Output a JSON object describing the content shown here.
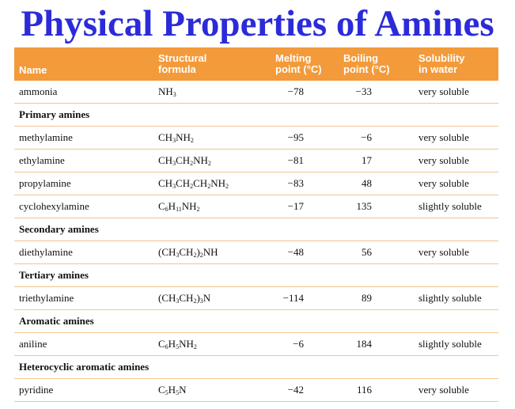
{
  "title": "Physical Properties of Amines",
  "headers": {
    "name": "Name",
    "formula_line1": "Structural",
    "formula_line2": "formula",
    "melting_line1": "Melting",
    "melting_line2": "point (°C)",
    "boiling_line1": "Boiling",
    "boiling_line2": "point (°C)",
    "solubility_line1": "Solubility",
    "solubility_line2": "in water"
  },
  "rows": [
    {
      "type": "data",
      "name": "ammonia",
      "formula_html": "NH<sub>3</sub>",
      "melting": "−78",
      "boiling": "−33",
      "solubility": "very soluble"
    },
    {
      "type": "group",
      "label": "Primary amines"
    },
    {
      "type": "data",
      "name": "methylamine",
      "formula_html": "CH<sub>3</sub>NH<sub>2</sub>",
      "melting": "−95",
      "boiling": "−6",
      "solubility": "very soluble"
    },
    {
      "type": "data",
      "name": "ethylamine",
      "formula_html": "CH<sub>3</sub>CH<sub>2</sub>NH<sub>2</sub>",
      "melting": "−81",
      "boiling": "17",
      "solubility": "very soluble"
    },
    {
      "type": "data",
      "name": "propylamine",
      "formula_html": "CH<sub>3</sub>CH<sub>2</sub>CH<sub>2</sub>NH<sub>2</sub>",
      "melting": "−83",
      "boiling": "48",
      "solubility": "very soluble"
    },
    {
      "type": "data",
      "name": "cyclohexylamine",
      "formula_html": "C<sub>6</sub>H<sub>11</sub>NH<sub>2</sub>",
      "melting": "−17",
      "boiling": "135",
      "solubility": "slightly soluble"
    },
    {
      "type": "group",
      "label": "Secondary amines"
    },
    {
      "type": "data",
      "name": "diethylamine",
      "formula_html": "(CH<sub>3</sub>CH<sub>2</sub>)<sub>2</sub>NH",
      "melting": "−48",
      "boiling": "56",
      "solubility": "very soluble"
    },
    {
      "type": "group",
      "label": "Tertiary amines"
    },
    {
      "type": "data",
      "name": "triethylamine",
      "formula_html": "(CH<sub>3</sub>CH<sub>2</sub>)<sub>3</sub>N",
      "melting": "−114",
      "boiling": "89",
      "solubility": "slightly soluble"
    },
    {
      "type": "group",
      "label": "Aromatic amines"
    },
    {
      "type": "data",
      "name": "aniline",
      "formula_html": "C<sub>6</sub>H<sub>5</sub>NH<sub>2</sub>",
      "melting": "−6",
      "boiling": "184",
      "solubility": "slightly soluble"
    },
    {
      "type": "group",
      "label": "Heterocyclic aromatic amines"
    },
    {
      "type": "data",
      "name": "pyridine",
      "formula_html": "C<sub>5</sub>H<sub>5</sub>N",
      "melting": "−42",
      "boiling": "116",
      "solubility": "very soluble"
    }
  ]
}
